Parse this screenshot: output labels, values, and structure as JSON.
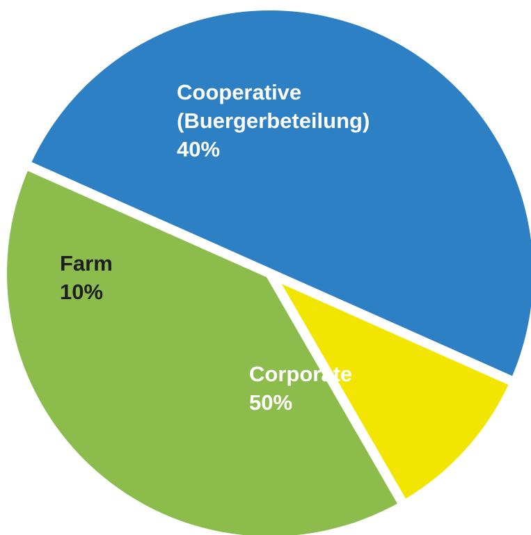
{
  "chart_data": {
    "type": "pie",
    "title": "",
    "slices": [
      {
        "name": "Corporate",
        "label_lines": [
          "Corporate",
          "50%"
        ],
        "value": 50,
        "color": "#2e80c4",
        "text_color": "#ffffff"
      },
      {
        "name": "Farm",
        "label_lines": [
          "Farm",
          "10%"
        ],
        "value": 10,
        "color": "#f2e500",
        "text_color": "#1e1e1e"
      },
      {
        "name": "Cooperative (Buergerbeteilung)",
        "label_lines": [
          "Cooperative",
          "(Buergerbeteilung)",
          "40%"
        ],
        "value": 40,
        "color": "#8cbd4c",
        "text_color": "#ffffff"
      }
    ],
    "legend": "none",
    "slice_gap_color": "#ffffff"
  }
}
